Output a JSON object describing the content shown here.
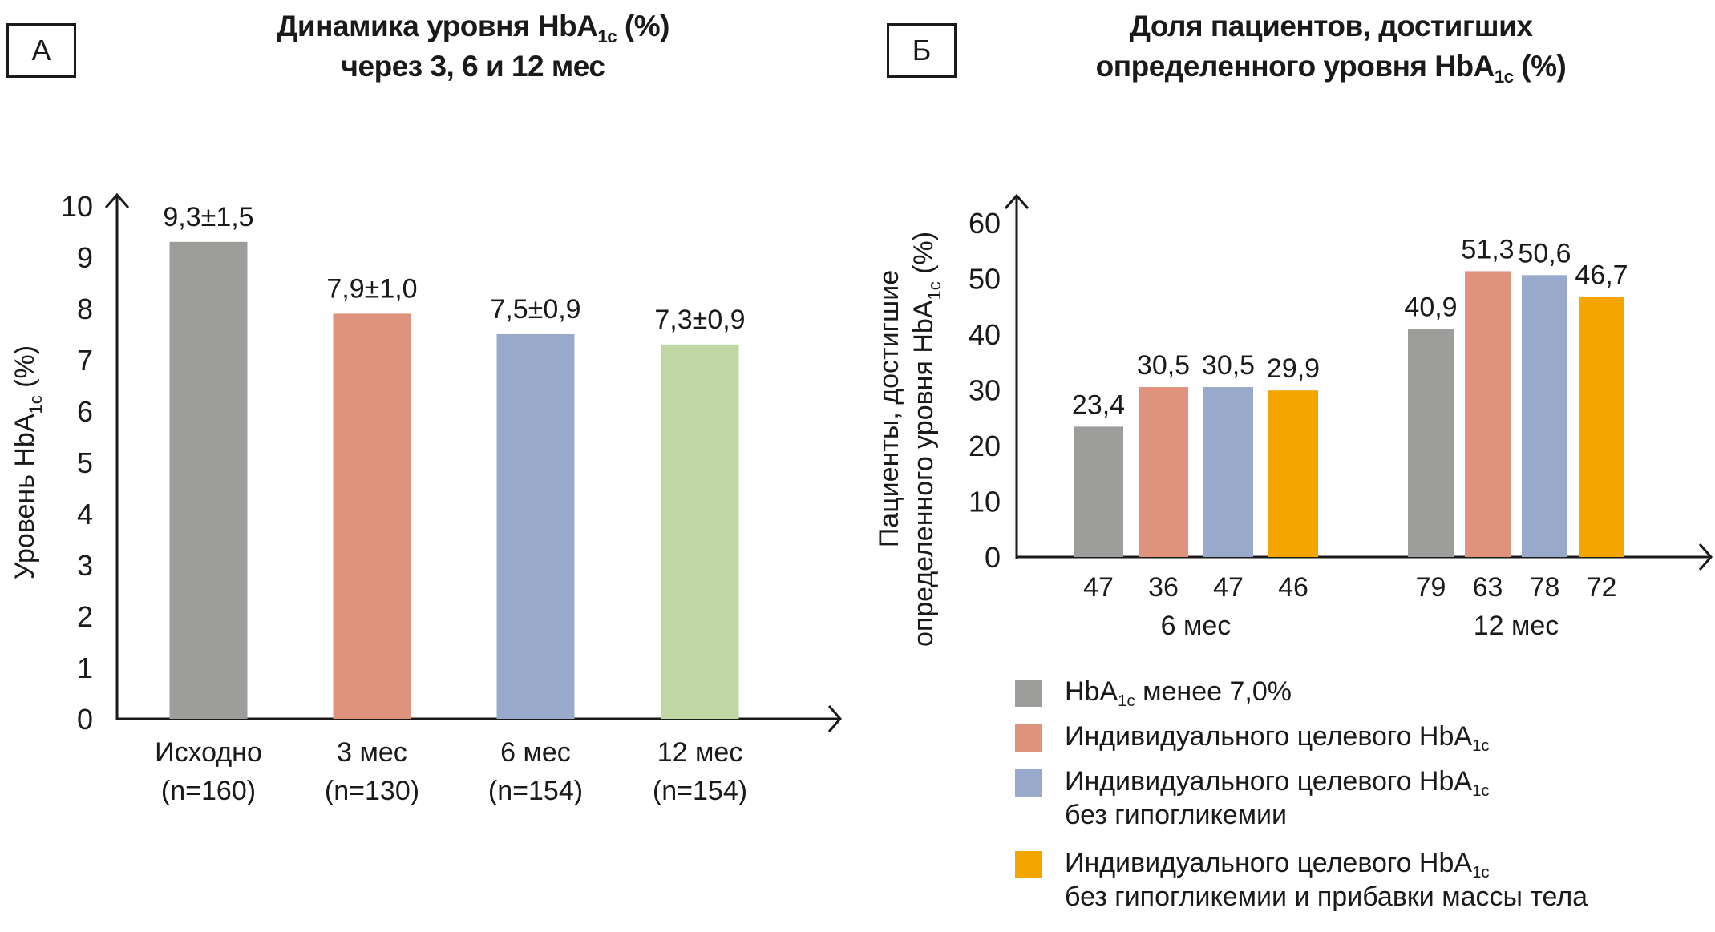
{
  "panels": {
    "a": {
      "letter": "А",
      "title_line1_pre": "Динамика уровня HbA",
      "title_line1_sub": "1c",
      "title_line1_post": " (%)",
      "title_line2": "через 3, 6 и 12 мес"
    },
    "b": {
      "letter": "Б",
      "title_line1": "Доля пациентов, достигших",
      "title_line2_pre": "определенного уровня HbA",
      "title_line2_sub": "1c",
      "title_line2_post": " (%)"
    }
  },
  "colors": {
    "gray": "#9d9d9c",
    "salmon": "#e0937c",
    "blue": "#98a9cb",
    "green": "#c0d6a5",
    "orange": "#f4a500",
    "axis": "#1a1a1a"
  },
  "chart_data": [
    {
      "type": "bar",
      "title": "Динамика уровня HbA1c (%) через 3, 6 и 12 мес",
      "ylabel_pre": "Уровень HbA",
      "ylabel_sub": "1c",
      "ylabel_post": " (%)",
      "xlabel": "",
      "ylim": [
        0,
        10
      ],
      "yticks": [
        0,
        1,
        2,
        3,
        4,
        5,
        6,
        7,
        8,
        9,
        10
      ],
      "grid": false,
      "categories": [
        {
          "label": "Исходно",
          "n": "(n=160)"
        },
        {
          "label": "3 мес",
          "n": "(n=130)"
        },
        {
          "label": "6 мес",
          "n": "(n=154)"
        },
        {
          "label": "12 мес",
          "n": "(n=154)"
        }
      ],
      "values": [
        9.3,
        7.9,
        7.5,
        7.3
      ],
      "value_labels": [
        "9,3±1,5",
        "7,9±1,0",
        "7,5±0,9",
        "7,3±0,9"
      ],
      "bar_colors": [
        "gray",
        "salmon",
        "blue",
        "green"
      ]
    },
    {
      "type": "bar",
      "title": "Доля пациентов, достигших определенного уровня HbA1c (%)",
      "ylabel_line1": "Пациенты, достигшие",
      "ylabel_line2_pre": "определенного уровня HbA",
      "ylabel_line2_sub": "1c",
      "ylabel_line2_post": " (%)",
      "xlabel": "",
      "ylim": [
        0,
        60
      ],
      "yticks": [
        0,
        10,
        20,
        30,
        40,
        50,
        60
      ],
      "grid": false,
      "legend_position": "bottom",
      "groups": [
        {
          "label": "6 мес",
          "n": [
            "47",
            "36",
            "47",
            "46"
          ]
        },
        {
          "label": "12 мес",
          "n": [
            "79",
            "63",
            "78",
            "72"
          ]
        }
      ],
      "series": [
        {
          "name": "HbA1c менее 7,0%",
          "color": "gray",
          "values": [
            23.4,
            40.9
          ],
          "value_labels": [
            "23,4",
            "40,9"
          ]
        },
        {
          "name": "Индивидуального целевого HbA1c",
          "color": "salmon",
          "values": [
            30.5,
            51.3
          ],
          "value_labels": [
            "30,5",
            "51,3"
          ]
        },
        {
          "name": "Индивидуального целевого HbA1c без гипогликемии",
          "color": "blue",
          "values": [
            30.5,
            50.6
          ],
          "value_labels": [
            "30,5",
            "50,6"
          ]
        },
        {
          "name": "Индивидуального целевого HbA1c без гипогликемии и прибавки массы тела",
          "color": "orange",
          "values": [
            29.9,
            46.7
          ],
          "value_labels": [
            "29,9",
            "46,7"
          ]
        }
      ]
    }
  ],
  "legend": [
    {
      "color": "gray",
      "line1_pre": "HbA",
      "line1_sub": "1c",
      "line1_post": " менее 7,0%",
      "line2": ""
    },
    {
      "color": "salmon",
      "line1_pre": "Индивидуального целевого HbA",
      "line1_sub": "1c",
      "line1_post": "",
      "line2": ""
    },
    {
      "color": "blue",
      "line1_pre": "Индивидуального целевого HbA",
      "line1_sub": "1c",
      "line1_post": "",
      "line2": "без гипогликемии"
    },
    {
      "color": "orange",
      "line1_pre": "Индивидуального целевого HbA",
      "line1_sub": "1c",
      "line1_post": "",
      "line2": "без гипогликемии и прибавки массы тела"
    }
  ]
}
